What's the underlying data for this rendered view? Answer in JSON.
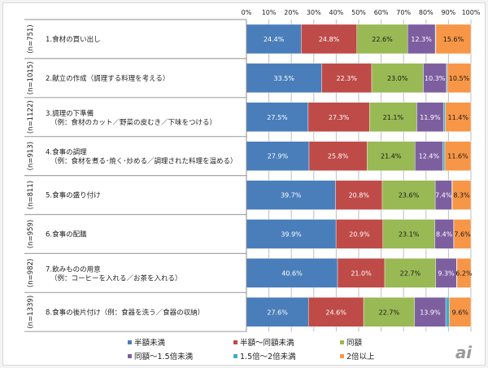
{
  "chart_data": {
    "type": "bar",
    "orientation": "horizontal",
    "stacked": true,
    "percent_stacked": true,
    "xlim": [
      0,
      100
    ],
    "x_ticks": [
      "0%",
      "10%",
      "20%",
      "30%",
      "40%",
      "50%",
      "60%",
      "70%",
      "80%",
      "90%",
      "100%"
    ],
    "grid": true,
    "legend_position": "bottom",
    "categories": [
      {
        "n": "(n=751)",
        "line1": "1.食材の買い出し",
        "line2": ""
      },
      {
        "n": "(n=1015)",
        "line1": "2.献立の作成（調理する料理を考える）",
        "line2": ""
      },
      {
        "n": "(n=1122)",
        "line1": "3.調理の下準備",
        "line2": "（例：食材のカット／野菜の皮むき／下味をつける）"
      },
      {
        "n": "(n=913)",
        "line1": "4.食事の調理",
        "line2": "（例：食材を煮る･焼く･炒める／調理された料理を温める）"
      },
      {
        "n": "(n=811)",
        "line1": "5.食事の盛り付け",
        "line2": ""
      },
      {
        "n": "(n=959)",
        "line1": "6.食事の配膳",
        "line2": ""
      },
      {
        "n": "(n=982)",
        "line1": "7.飲みものの用意",
        "line2": "（例：コーヒーを入れる／お茶を入れる）"
      },
      {
        "n": "(n=1339)",
        "line1": "8.食事の後片付け（例：食器を洗う／食器の収納）",
        "line2": ""
      }
    ],
    "series": [
      {
        "name": "半額未満",
        "color": "#4a7ebb",
        "label_color": "#ffffff",
        "values": [
          24.4,
          33.5,
          27.5,
          27.9,
          39.7,
          39.9,
          40.6,
          27.6
        ],
        "labels": [
          "24.4%",
          "33.5%",
          "27.5%",
          "27.9%",
          "39.7%",
          "39.9%",
          "40.6%",
          "27.6%"
        ]
      },
      {
        "name": "半額～同額未満",
        "color": "#be4b48",
        "label_color": "#ffffff",
        "values": [
          24.8,
          22.3,
          27.3,
          25.8,
          20.8,
          20.9,
          21.0,
          24.6
        ],
        "labels": [
          "24.8%",
          "22.3%",
          "27.3%",
          "25.8%",
          "20.8%",
          "20.9%",
          "21.0%",
          "24.6%"
        ]
      },
      {
        "name": "同額",
        "color": "#98b954",
        "label_color": "#1a1a1a",
        "values": [
          22.6,
          23.0,
          21.1,
          21.4,
          23.6,
          23.1,
          22.7,
          22.7
        ],
        "labels": [
          "22.6%",
          "23.0%",
          "21.1%",
          "21.4%",
          "23.6%",
          "23.1%",
          "22.7%",
          "22.7%"
        ]
      },
      {
        "name": "同額～1.5倍未満",
        "color": "#7d5fa0",
        "label_color": "#ffffff",
        "values": [
          12.3,
          10.3,
          11.9,
          12.4,
          7.4,
          8.4,
          9.3,
          13.9
        ],
        "labels": [
          "12.3%",
          "10.3%",
          "11.9%",
          "12.4%",
          "7.4%",
          "8.4%",
          "9.3%",
          "13.9%"
        ]
      },
      {
        "name": "1.5倍～2倍未満",
        "color": "#46aac5",
        "label_color": "#ffffff",
        "values": [
          0.3,
          0.4,
          0.8,
          0.9,
          0.2,
          0.1,
          0.2,
          1.6
        ],
        "labels": []
      },
      {
        "name": "2倍以上",
        "color": "#f79646",
        "label_color": "#1a1a1a",
        "values": [
          15.6,
          10.5,
          11.4,
          11.6,
          8.3,
          7.6,
          6.2,
          9.6
        ],
        "labels": [
          "15.6%",
          "10.5%",
          "11.4%",
          "11.6%",
          "8.3%",
          "7.6%",
          "6.2%",
          "9.6%"
        ]
      }
    ]
  },
  "watermark": "ai"
}
